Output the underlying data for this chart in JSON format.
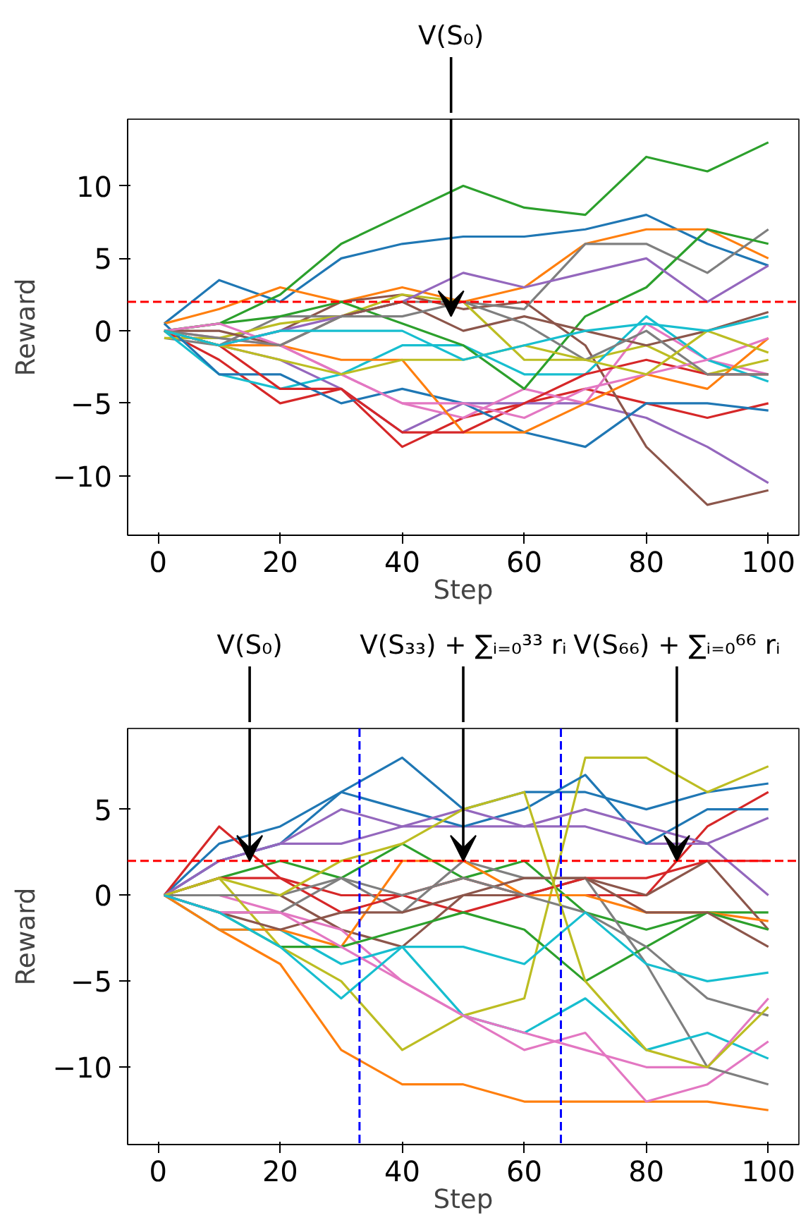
{
  "chart_data": [
    {
      "type": "line",
      "xlabel": "Step",
      "ylabel": "Reward",
      "x": [
        1,
        10,
        20,
        30,
        40,
        50,
        60,
        70,
        80,
        90,
        100
      ],
      "xlim": [
        -5,
        105
      ],
      "ylim": [
        -14.1,
        14.6
      ],
      "xticks": [
        0,
        20,
        40,
        60,
        80,
        100
      ],
      "yticks": [
        -10,
        -5,
        0,
        5,
        10
      ],
      "grid": false,
      "line_style": "solid",
      "annotations": [
        {
          "text": "V(S₀)",
          "x": 48,
          "y": 1
        }
      ],
      "ref_lines": [
        {
          "axis": "y",
          "value": 2,
          "color": "#ff0000",
          "line_style": "dashed"
        }
      ],
      "series": [
        {
          "color": "#1f77b4",
          "values": [
            0.5,
            3.5,
            2,
            5,
            6,
            6.5,
            6.5,
            7,
            8,
            6,
            4.5
          ]
        },
        {
          "color": "#ff7f0e",
          "values": [
            0.5,
            1.5,
            3,
            2,
            3,
            2,
            3,
            6,
            7,
            7,
            5
          ]
        },
        {
          "color": "#2ca02c",
          "values": [
            0,
            0.5,
            2.5,
            6,
            8,
            10,
            8.5,
            8,
            12,
            11,
            13
          ]
        },
        {
          "color": "#d62728",
          "values": [
            0,
            -2,
            -5,
            -4,
            -8,
            -6,
            -5,
            -4,
            -5,
            -6,
            -5
          ]
        },
        {
          "color": "#9467bd",
          "values": [
            0,
            -1,
            -2,
            -4,
            -7,
            -5,
            -5,
            -5,
            -6,
            -8,
            -10.5
          ]
        },
        {
          "color": "#8c564b",
          "values": [
            0,
            -1,
            0,
            2,
            2.5,
            1.5,
            2,
            -1,
            -8,
            -12,
            -11
          ]
        },
        {
          "color": "#e377c2",
          "values": [
            0,
            -0.5,
            -1,
            -3,
            -5,
            -6,
            -4,
            -5,
            0.5,
            -2,
            -3
          ]
        },
        {
          "color": "#7f7f7f",
          "values": [
            -0.5,
            -1,
            1,
            1,
            2,
            2,
            1.5,
            6,
            6,
            4,
            7
          ]
        },
        {
          "color": "#bcbd22",
          "values": [
            -0.5,
            -0.5,
            0.5,
            1,
            2.5,
            2,
            -2,
            -2,
            -1,
            -3,
            -2
          ]
        },
        {
          "color": "#17becf",
          "values": [
            0,
            -3,
            -4,
            -3,
            -1,
            -1,
            -3,
            -3,
            1,
            -2,
            -3.5
          ]
        },
        {
          "color": "#1f77b4",
          "values": [
            0.5,
            -3,
            -3,
            -5,
            -4,
            -5,
            -7,
            -8,
            -5,
            -5,
            -5.5
          ]
        },
        {
          "color": "#ff7f0e",
          "values": [
            0,
            -1,
            -1,
            -2,
            -2,
            -7,
            -7,
            -5,
            -3,
            -4,
            -0.5
          ]
        },
        {
          "color": "#2ca02c",
          "values": [
            0,
            0.5,
            1,
            2,
            0.5,
            -1,
            -4,
            1,
            3,
            7,
            6
          ]
        },
        {
          "color": "#d62728",
          "values": [
            0,
            -1,
            -4,
            -4,
            -7,
            -7,
            -5,
            -3,
            -2,
            -3,
            -3
          ]
        },
        {
          "color": "#9467bd",
          "values": [
            0,
            -1,
            0,
            1,
            2,
            4,
            3,
            4,
            5,
            2,
            4.5
          ]
        },
        {
          "color": "#8c564b",
          "values": [
            0,
            0,
            -1,
            1,
            2,
            0,
            1,
            0,
            -1,
            0,
            1.3
          ]
        },
        {
          "color": "#e377c2",
          "values": [
            0,
            0.5,
            -1,
            -3,
            -5,
            -5,
            -6,
            -4,
            -3,
            -2,
            -0.5
          ]
        },
        {
          "color": "#7f7f7f",
          "values": [
            0,
            -0.5,
            -1,
            1,
            1,
            2,
            0.5,
            -2,
            0,
            -3,
            -3
          ]
        },
        {
          "color": "#bcbd22",
          "values": [
            0,
            -1,
            -2,
            -3,
            -2,
            -2,
            -1,
            -2,
            -3,
            0,
            -1.5
          ]
        },
        {
          "color": "#17becf",
          "values": [
            0,
            -1,
            0,
            0,
            0,
            -2,
            -1,
            0,
            0.5,
            0,
            1
          ]
        }
      ]
    },
    {
      "type": "line",
      "xlabel": "Step",
      "ylabel": "Reward",
      "x": [
        1,
        10,
        20,
        30,
        40,
        50,
        60,
        70,
        80,
        90,
        100
      ],
      "xlim": [
        -5,
        105
      ],
      "ylim": [
        -14.5,
        9.7
      ],
      "xticks": [
        0,
        20,
        40,
        60,
        80,
        100
      ],
      "yticks": [
        -10,
        -5,
        0,
        5
      ],
      "grid": false,
      "line_style": "solid",
      "annotations": [
        {
          "text": "V(S₀)",
          "x": 15,
          "y": 2
        },
        {
          "text": "V(S₃₃) + ∑ᵢ₌₀³³ rᵢ",
          "x": 50,
          "y": 2
        },
        {
          "text": "V(S₆₆) + ∑ᵢ₌₀⁶⁶ rᵢ",
          "x": 85,
          "y": 2
        }
      ],
      "ref_lines": [
        {
          "axis": "y",
          "value": 2,
          "color": "#ff0000",
          "line_style": "dashed"
        },
        {
          "axis": "x",
          "value": 33,
          "color": "#0000ff",
          "line_style": "dashed"
        },
        {
          "axis": "x",
          "value": 66,
          "color": "#0000ff",
          "line_style": "dashed"
        }
      ],
      "series": [
        {
          "color": "#1f77b4",
          "values": [
            0,
            3,
            4,
            6,
            8,
            5,
            6,
            6,
            5,
            6,
            6.5
          ]
        },
        {
          "color": "#ff7f0e",
          "values": [
            0,
            -2,
            -4,
            -9,
            -11,
            -11,
            -12,
            -12,
            -12,
            -12,
            -12.5
          ]
        },
        {
          "color": "#2ca02c",
          "values": [
            0,
            1,
            2,
            1,
            3,
            1,
            2,
            -1,
            -2,
            -1,
            -1
          ]
        },
        {
          "color": "#d62728",
          "values": [
            0,
            4,
            1,
            0,
            0,
            -1,
            0,
            0,
            0,
            4,
            6
          ]
        },
        {
          "color": "#9467bd",
          "values": [
            0,
            2,
            3,
            3,
            4,
            4,
            4,
            4,
            3,
            3,
            4.5
          ]
        },
        {
          "color": "#8c564b",
          "values": [
            0,
            0,
            0,
            -2,
            -3,
            0,
            0,
            1,
            0,
            2,
            -2
          ]
        },
        {
          "color": "#e377c2",
          "values": [
            0,
            0,
            -1,
            -2,
            -5,
            -7,
            -9,
            -8,
            -12,
            -11,
            -8.5
          ]
        },
        {
          "color": "#7f7f7f",
          "values": [
            0,
            -1,
            -1,
            1,
            -1,
            2,
            1,
            1,
            -4,
            -10,
            -11
          ]
        },
        {
          "color": "#bcbd22",
          "values": [
            0,
            1,
            -3,
            -5,
            -9,
            -7,
            -6,
            8,
            8,
            6,
            7.5
          ]
        },
        {
          "color": "#17becf",
          "values": [
            0,
            -2,
            -2,
            -4,
            -3,
            -7,
            -8,
            -6,
            -9,
            -8,
            -9.5
          ]
        },
        {
          "color": "#1f77b4",
          "values": [
            0,
            2,
            3,
            6,
            5,
            4,
            5,
            7,
            3,
            5,
            5
          ]
        },
        {
          "color": "#ff7f0e",
          "values": [
            0,
            -2,
            -2,
            -3,
            2,
            2,
            0,
            0,
            -1,
            -1,
            -1.5
          ]
        },
        {
          "color": "#2ca02c",
          "values": [
            0,
            -1,
            -3,
            -3,
            -2,
            -1,
            -2,
            -5,
            -3,
            -1,
            -2
          ]
        },
        {
          "color": "#d62728",
          "values": [
            0,
            1,
            1,
            -1,
            0,
            1,
            0,
            1,
            1,
            2,
            2
          ]
        },
        {
          "color": "#9467bd",
          "values": [
            0,
            2,
            3,
            5,
            4,
            5,
            4,
            5,
            4,
            3,
            0
          ]
        },
        {
          "color": "#8c564b",
          "values": [
            0,
            -1,
            -2,
            -1,
            -1,
            0,
            1,
            1,
            -1,
            -1,
            -3
          ]
        },
        {
          "color": "#e377c2",
          "values": [
            0,
            -1,
            -1,
            -3,
            -5,
            -7,
            -8,
            -9,
            -10,
            -10,
            -6
          ]
        },
        {
          "color": "#7f7f7f",
          "values": [
            0,
            0,
            0,
            1,
            0,
            1,
            0,
            -1,
            -3,
            -6,
            -7
          ]
        },
        {
          "color": "#bcbd22",
          "values": [
            0,
            1,
            0,
            2,
            3,
            5,
            6,
            -5,
            -9,
            -10,
            -6.5
          ]
        },
        {
          "color": "#17becf",
          "values": [
            0,
            -1,
            -3,
            -6,
            -3,
            -3,
            -4,
            -1,
            -4,
            -5,
            -4.5
          ]
        }
      ]
    }
  ]
}
